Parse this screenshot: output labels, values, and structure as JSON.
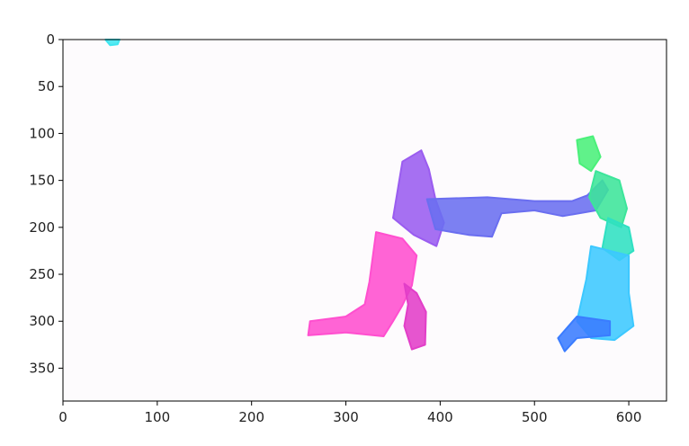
{
  "chart_data": {
    "type": "heatmap",
    "title": "",
    "xlabel": "",
    "ylabel": "",
    "xlim": [
      0,
      640
    ],
    "ylim": [
      385,
      0
    ],
    "x_ticks": [
      0,
      100,
      200,
      300,
      400,
      500,
      600
    ],
    "y_ticks": [
      0,
      50,
      100,
      150,
      200,
      250,
      300,
      350
    ],
    "grid": false,
    "image_background_color": "#fdfbfd",
    "regions": [
      {
        "color": "#9a5cf0",
        "points": [
          [
            360,
            130
          ],
          [
            380,
            118
          ],
          [
            388,
            138
          ],
          [
            395,
            170
          ],
          [
            404,
            195
          ],
          [
            396,
            220
          ],
          [
            372,
            208
          ],
          [
            350,
            190
          ]
        ]
      },
      {
        "color": "#6a6ef0",
        "points": [
          [
            386,
            170
          ],
          [
            450,
            168
          ],
          [
            500,
            172
          ],
          [
            540,
            172
          ],
          [
            556,
            166
          ],
          [
            572,
            150
          ],
          [
            578,
            160
          ],
          [
            565,
            182
          ],
          [
            530,
            188
          ],
          [
            500,
            182
          ],
          [
            465,
            185
          ],
          [
            455,
            210
          ],
          [
            430,
            208
          ],
          [
            395,
            202
          ]
        ]
      },
      {
        "color": "#ff4fcf",
        "points": [
          [
            332,
            205
          ],
          [
            360,
            212
          ],
          [
            375,
            230
          ],
          [
            370,
            262
          ],
          [
            360,
            283
          ],
          [
            350,
            300
          ],
          [
            340,
            316
          ],
          [
            300,
            312
          ],
          [
            260,
            315
          ],
          [
            262,
            300
          ],
          [
            300,
            295
          ],
          [
            320,
            282
          ],
          [
            325,
            258
          ]
        ]
      },
      {
        "color": "#e23ec8",
        "points": [
          [
            362,
            260
          ],
          [
            375,
            270
          ],
          [
            385,
            290
          ],
          [
            384,
            325
          ],
          [
            370,
            330
          ],
          [
            362,
            305
          ],
          [
            366,
            282
          ]
        ]
      },
      {
        "color": "#4af07a",
        "points": [
          [
            545,
            107
          ],
          [
            562,
            103
          ],
          [
            570,
            125
          ],
          [
            560,
            140
          ],
          [
            548,
            132
          ]
        ]
      },
      {
        "color": "#3ce59a",
        "points": [
          [
            565,
            140
          ],
          [
            590,
            150
          ],
          [
            598,
            180
          ],
          [
            592,
            200
          ],
          [
            570,
            190
          ],
          [
            558,
            168
          ]
        ]
      },
      {
        "color": "#2fe0c2",
        "points": [
          [
            578,
            190
          ],
          [
            600,
            200
          ],
          [
            605,
            225
          ],
          [
            590,
            235
          ],
          [
            572,
            222
          ]
        ]
      },
      {
        "color": "#3cc8ff",
        "points": [
          [
            560,
            220
          ],
          [
            600,
            230
          ],
          [
            600,
            270
          ],
          [
            605,
            305
          ],
          [
            585,
            320
          ],
          [
            560,
            318
          ],
          [
            545,
            300
          ],
          [
            555,
            255
          ]
        ]
      },
      {
        "color": "#3a7cff",
        "points": [
          [
            545,
            295
          ],
          [
            580,
            300
          ],
          [
            580,
            315
          ],
          [
            545,
            318
          ],
          [
            532,
            332
          ],
          [
            525,
            318
          ]
        ]
      },
      {
        "color": "#3fe6f0",
        "points": [
          [
            45,
            0
          ],
          [
            60,
            0
          ],
          [
            58,
            5
          ],
          [
            50,
            6
          ]
        ]
      }
    ]
  }
}
